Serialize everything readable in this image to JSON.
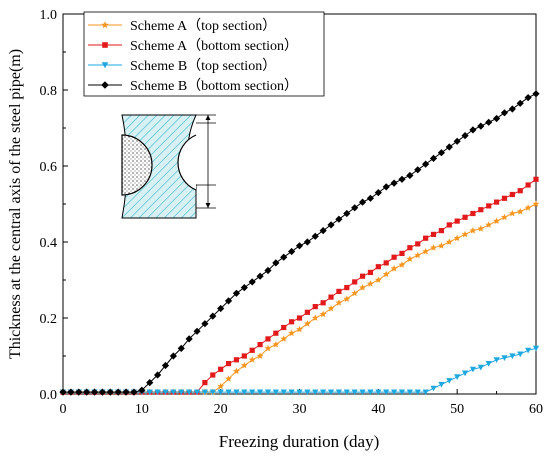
{
  "chart_data": {
    "type": "line",
    "title": "",
    "xlabel": "Freezing duration (day)",
    "ylabel": "Thickness at the central axis of the steel pipe(m)",
    "xlim": [
      0,
      60
    ],
    "ylim": [
      0,
      1.0
    ],
    "xticks": [
      0,
      10,
      20,
      30,
      40,
      50,
      60
    ],
    "yticks": [
      0.0,
      0.2,
      0.4,
      0.6,
      0.8,
      1.0
    ],
    "xtick_labels": [
      "0",
      "10",
      "20",
      "30",
      "40",
      "50",
      "60"
    ],
    "ytick_labels": [
      "0.0",
      "0.2",
      "0.4",
      "0.6",
      "0.8",
      "1.0"
    ],
    "grid": false,
    "legend_position": "top-left",
    "series": [
      {
        "name": "Scheme A（top section）",
        "color": "#f7961e",
        "marker": "star",
        "points": [
          [
            0,
            0.005
          ],
          [
            1,
            0.005
          ],
          [
            2,
            0.005
          ],
          [
            3,
            0.005
          ],
          [
            4,
            0.005
          ],
          [
            5,
            0.005
          ],
          [
            6,
            0.005
          ],
          [
            7,
            0.005
          ],
          [
            8,
            0.005
          ],
          [
            9,
            0.005
          ],
          [
            10,
            0.005
          ],
          [
            11,
            0.005
          ],
          [
            12,
            0.005
          ],
          [
            13,
            0.005
          ],
          [
            14,
            0.005
          ],
          [
            15,
            0.005
          ],
          [
            16,
            0.005
          ],
          [
            17,
            0.005
          ],
          [
            18,
            0.005
          ],
          [
            19,
            0.005
          ],
          [
            20,
            0.02
          ],
          [
            21,
            0.04
          ],
          [
            22,
            0.06
          ],
          [
            23,
            0.075
          ],
          [
            24,
            0.09
          ],
          [
            25,
            0.1
          ],
          [
            26,
            0.12
          ],
          [
            27,
            0.13
          ],
          [
            28,
            0.145
          ],
          [
            29,
            0.16
          ],
          [
            30,
            0.17
          ],
          [
            31,
            0.185
          ],
          [
            32,
            0.2
          ],
          [
            33,
            0.21
          ],
          [
            34,
            0.225
          ],
          [
            35,
            0.24
          ],
          [
            36,
            0.25
          ],
          [
            37,
            0.265
          ],
          [
            38,
            0.28
          ],
          [
            39,
            0.29
          ],
          [
            40,
            0.3
          ],
          [
            41,
            0.315
          ],
          [
            42,
            0.33
          ],
          [
            43,
            0.34
          ],
          [
            44,
            0.355
          ],
          [
            45,
            0.365
          ],
          [
            46,
            0.375
          ],
          [
            47,
            0.385
          ],
          [
            48,
            0.39
          ],
          [
            49,
            0.4
          ],
          [
            50,
            0.41
          ],
          [
            51,
            0.42
          ],
          [
            52,
            0.43
          ],
          [
            53,
            0.435
          ],
          [
            54,
            0.445
          ],
          [
            55,
            0.455
          ],
          [
            56,
            0.465
          ],
          [
            57,
            0.475
          ],
          [
            58,
            0.48
          ],
          [
            59,
            0.49
          ],
          [
            60,
            0.5
          ]
        ]
      },
      {
        "name": "Scheme A（bottom section）",
        "color": "#e31a1c",
        "marker": "square",
        "points": [
          [
            0,
            0.005
          ],
          [
            1,
            0.005
          ],
          [
            2,
            0.005
          ],
          [
            3,
            0.005
          ],
          [
            4,
            0.005
          ],
          [
            5,
            0.005
          ],
          [
            6,
            0.005
          ],
          [
            7,
            0.005
          ],
          [
            8,
            0.005
          ],
          [
            9,
            0.005
          ],
          [
            10,
            0.005
          ],
          [
            11,
            0.005
          ],
          [
            12,
            0.005
          ],
          [
            13,
            0.005
          ],
          [
            14,
            0.005
          ],
          [
            15,
            0.005
          ],
          [
            16,
            0.005
          ],
          [
            17,
            0.005
          ],
          [
            18,
            0.03
          ],
          [
            19,
            0.05
          ],
          [
            20,
            0.065
          ],
          [
            21,
            0.08
          ],
          [
            22,
            0.09
          ],
          [
            23,
            0.1
          ],
          [
            24,
            0.115
          ],
          [
            25,
            0.13
          ],
          [
            26,
            0.145
          ],
          [
            27,
            0.16
          ],
          [
            28,
            0.175
          ],
          [
            29,
            0.19
          ],
          [
            30,
            0.2
          ],
          [
            31,
            0.215
          ],
          [
            32,
            0.23
          ],
          [
            33,
            0.24
          ],
          [
            34,
            0.255
          ],
          [
            35,
            0.27
          ],
          [
            36,
            0.28
          ],
          [
            37,
            0.295
          ],
          [
            38,
            0.31
          ],
          [
            39,
            0.32
          ],
          [
            40,
            0.335
          ],
          [
            41,
            0.345
          ],
          [
            42,
            0.36
          ],
          [
            43,
            0.37
          ],
          [
            44,
            0.385
          ],
          [
            45,
            0.395
          ],
          [
            46,
            0.41
          ],
          [
            47,
            0.42
          ],
          [
            48,
            0.43
          ],
          [
            49,
            0.445
          ],
          [
            50,
            0.455
          ],
          [
            51,
            0.465
          ],
          [
            52,
            0.475
          ],
          [
            53,
            0.485
          ],
          [
            54,
            0.495
          ],
          [
            55,
            0.505
          ],
          [
            56,
            0.515
          ],
          [
            57,
            0.525
          ],
          [
            58,
            0.535
          ],
          [
            59,
            0.55
          ],
          [
            60,
            0.565
          ]
        ]
      },
      {
        "name": "Scheme B（top section）",
        "color": "#1ea8e0",
        "marker": "triangle-down",
        "points": [
          [
            0,
            0.005
          ],
          [
            1,
            0.005
          ],
          [
            2,
            0.005
          ],
          [
            3,
            0.005
          ],
          [
            4,
            0.005
          ],
          [
            5,
            0.005
          ],
          [
            6,
            0.005
          ],
          [
            7,
            0.005
          ],
          [
            8,
            0.005
          ],
          [
            9,
            0.005
          ],
          [
            10,
            0.005
          ],
          [
            11,
            0.005
          ],
          [
            12,
            0.005
          ],
          [
            13,
            0.005
          ],
          [
            14,
            0.005
          ],
          [
            15,
            0.005
          ],
          [
            16,
            0.005
          ],
          [
            17,
            0.005
          ],
          [
            18,
            0.005
          ],
          [
            19,
            0.005
          ],
          [
            20,
            0.005
          ],
          [
            21,
            0.005
          ],
          [
            22,
            0.005
          ],
          [
            23,
            0.005
          ],
          [
            24,
            0.005
          ],
          [
            25,
            0.005
          ],
          [
            26,
            0.005
          ],
          [
            27,
            0.005
          ],
          [
            28,
            0.005
          ],
          [
            29,
            0.005
          ],
          [
            30,
            0.005
          ],
          [
            31,
            0.005
          ],
          [
            32,
            0.005
          ],
          [
            33,
            0.005
          ],
          [
            34,
            0.005
          ],
          [
            35,
            0.005
          ],
          [
            36,
            0.005
          ],
          [
            37,
            0.005
          ],
          [
            38,
            0.005
          ],
          [
            39,
            0.005
          ],
          [
            40,
            0.005
          ],
          [
            41,
            0.005
          ],
          [
            42,
            0.005
          ],
          [
            43,
            0.005
          ],
          [
            44,
            0.005
          ],
          [
            45,
            0.005
          ],
          [
            46,
            0.005
          ],
          [
            47,
            0.015
          ],
          [
            48,
            0.025
          ],
          [
            49,
            0.035
          ],
          [
            50,
            0.045
          ],
          [
            51,
            0.055
          ],
          [
            52,
            0.065
          ],
          [
            53,
            0.07
          ],
          [
            54,
            0.08
          ],
          [
            55,
            0.09
          ],
          [
            56,
            0.095
          ],
          [
            57,
            0.1
          ],
          [
            58,
            0.105
          ],
          [
            59,
            0.115
          ],
          [
            60,
            0.12
          ]
        ]
      },
      {
        "name": "Scheme B（bottom section）",
        "color": "#000000",
        "marker": "diamond",
        "points": [
          [
            0,
            0.005
          ],
          [
            1,
            0.005
          ],
          [
            2,
            0.005
          ],
          [
            3,
            0.005
          ],
          [
            4,
            0.005
          ],
          [
            5,
            0.005
          ],
          [
            6,
            0.005
          ],
          [
            7,
            0.005
          ],
          [
            8,
            0.005
          ],
          [
            9,
            0.005
          ],
          [
            10,
            0.01
          ],
          [
            11,
            0.03
          ],
          [
            12,
            0.05
          ],
          [
            13,
            0.075
          ],
          [
            14,
            0.1
          ],
          [
            15,
            0.12
          ],
          [
            16,
            0.145
          ],
          [
            17,
            0.165
          ],
          [
            18,
            0.185
          ],
          [
            19,
            0.205
          ],
          [
            20,
            0.225
          ],
          [
            21,
            0.245
          ],
          [
            22,
            0.265
          ],
          [
            23,
            0.28
          ],
          [
            24,
            0.295
          ],
          [
            25,
            0.31
          ],
          [
            26,
            0.325
          ],
          [
            27,
            0.345
          ],
          [
            28,
            0.36
          ],
          [
            29,
            0.375
          ],
          [
            30,
            0.39
          ],
          [
            31,
            0.4
          ],
          [
            32,
            0.415
          ],
          [
            33,
            0.43
          ],
          [
            34,
            0.445
          ],
          [
            35,
            0.46
          ],
          [
            36,
            0.475
          ],
          [
            37,
            0.49
          ],
          [
            38,
            0.505
          ],
          [
            39,
            0.515
          ],
          [
            40,
            0.53
          ],
          [
            41,
            0.545
          ],
          [
            42,
            0.555
          ],
          [
            43,
            0.565
          ],
          [
            44,
            0.575
          ],
          [
            45,
            0.59
          ],
          [
            46,
            0.605
          ],
          [
            47,
            0.62
          ],
          [
            48,
            0.635
          ],
          [
            49,
            0.65
          ],
          [
            50,
            0.665
          ],
          [
            51,
            0.68
          ],
          [
            52,
            0.695
          ],
          [
            53,
            0.705
          ],
          [
            54,
            0.715
          ],
          [
            55,
            0.725
          ],
          [
            56,
            0.74
          ],
          [
            57,
            0.75
          ],
          [
            58,
            0.765
          ],
          [
            59,
            0.78
          ],
          [
            60,
            0.79
          ]
        ]
      }
    ]
  },
  "inset": {
    "colors": {
      "hatch": "#36b4c8",
      "fill": "#d8f1f5",
      "outline": "#000000"
    }
  }
}
